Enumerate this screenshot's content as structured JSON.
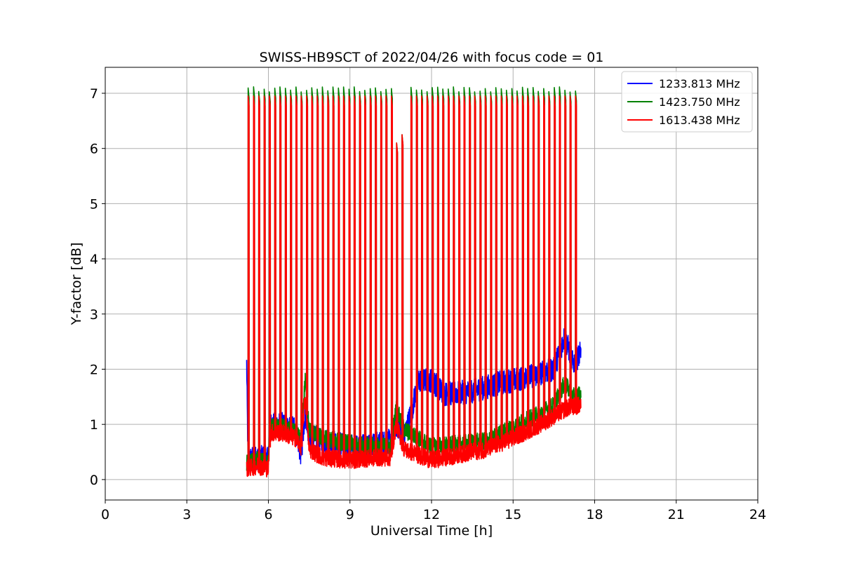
{
  "chart_data": {
    "type": "line",
    "title": "SWISS-HB9SCT of 2022/04/26 with focus code = 01",
    "xlabel": "Universal Time [h]",
    "ylabel": "Y-factor [dB]",
    "xlim": [
      0,
      24
    ],
    "ylim": [
      -0.37,
      7.47
    ],
    "xticks": [
      0,
      3,
      6,
      9,
      12,
      15,
      18,
      21,
      24
    ],
    "yticks": [
      0,
      1,
      2,
      3,
      4,
      5,
      6,
      7
    ],
    "grid": true,
    "legend_position": "top-right",
    "data_range_x": [
      5.2,
      17.5
    ],
    "series": [
      {
        "name": "1233.813 MHz",
        "color": "#0000ff",
        "baseline": [
          [
            5.2,
            2.1
          ],
          [
            5.25,
            0.35
          ],
          [
            5.6,
            0.4
          ],
          [
            6.0,
            0.4
          ],
          [
            6.05,
            1.0
          ],
          [
            6.5,
            1.0
          ],
          [
            7.0,
            0.9
          ],
          [
            7.2,
            0.45
          ],
          [
            7.35,
            1.2
          ],
          [
            7.5,
            0.8
          ],
          [
            8.0,
            0.7
          ],
          [
            9.0,
            0.6
          ],
          [
            10.0,
            0.65
          ],
          [
            10.5,
            0.7
          ],
          [
            10.7,
            1.0
          ],
          [
            11.0,
            0.8
          ],
          [
            11.3,
            1.3
          ],
          [
            11.5,
            1.8
          ],
          [
            12.0,
            1.8
          ],
          [
            12.5,
            1.55
          ],
          [
            13.5,
            1.6
          ],
          [
            14.5,
            1.75
          ],
          [
            15.5,
            1.85
          ],
          [
            16.5,
            2.0
          ],
          [
            16.9,
            2.6
          ],
          [
            17.2,
            2.1
          ],
          [
            17.5,
            2.3
          ]
        ],
        "spikes": [
          5.25,
          5.45,
          5.64,
          5.84,
          6.03,
          6.23,
          6.42,
          6.62,
          6.81,
          7.01,
          7.2,
          7.4,
          7.59,
          7.79,
          7.98,
          8.18,
          8.37,
          8.57,
          8.76,
          8.96,
          9.15,
          9.35,
          9.54,
          9.74,
          9.93,
          10.13,
          10.32,
          10.52,
          10.71,
          10.91,
          11.24,
          11.44,
          11.63,
          11.83,
          12.02,
          12.22,
          12.41,
          12.61,
          12.8,
          13.0,
          13.19,
          13.39,
          13.58,
          13.78,
          13.97,
          14.17,
          14.36,
          14.56,
          14.75,
          14.95,
          15.14,
          15.34,
          15.53,
          15.73,
          15.92,
          16.12,
          16.31,
          16.51,
          16.7,
          16.9,
          17.09,
          17.29
        ]
      },
      {
        "name": "1423.750 MHz",
        "color": "#008000",
        "baseline": [
          [
            5.2,
            0.3
          ],
          [
            5.6,
            0.35
          ],
          [
            6.0,
            0.3
          ],
          [
            6.05,
            0.95
          ],
          [
            6.5,
            0.95
          ],
          [
            7.0,
            0.85
          ],
          [
            7.2,
            0.7
          ],
          [
            7.35,
            1.8
          ],
          [
            7.5,
            0.9
          ],
          [
            8.0,
            0.75
          ],
          [
            9.0,
            0.65
          ],
          [
            10.0,
            0.6
          ],
          [
            10.5,
            0.6
          ],
          [
            10.7,
            1.3
          ],
          [
            11.0,
            0.9
          ],
          [
            11.5,
            0.75
          ],
          [
            12.0,
            0.6
          ],
          [
            13.0,
            0.65
          ],
          [
            14.0,
            0.7
          ],
          [
            15.0,
            0.95
          ],
          [
            16.0,
            1.2
          ],
          [
            16.5,
            1.35
          ],
          [
            16.9,
            1.75
          ],
          [
            17.2,
            1.5
          ],
          [
            17.5,
            1.55
          ]
        ],
        "spikes": [
          5.25,
          5.45,
          5.64,
          5.84,
          6.03,
          6.23,
          6.42,
          6.62,
          6.81,
          7.01,
          7.2,
          7.4,
          7.59,
          7.79,
          7.98,
          8.18,
          8.37,
          8.57,
          8.76,
          8.96,
          9.15,
          9.35,
          9.54,
          9.74,
          9.93,
          10.13,
          10.32,
          10.52,
          10.71,
          10.91,
          11.24,
          11.44,
          11.63,
          11.83,
          12.02,
          12.22,
          12.41,
          12.61,
          12.8,
          13.0,
          13.19,
          13.39,
          13.58,
          13.78,
          13.97,
          14.17,
          14.36,
          14.56,
          14.75,
          14.95,
          15.14,
          15.34,
          15.53,
          15.73,
          15.92,
          16.12,
          16.31,
          16.51,
          16.7,
          16.9,
          17.09,
          17.29
        ]
      },
      {
        "name": "1613.438 MHz",
        "color": "#ff0000",
        "baseline": [
          [
            5.2,
            0.2
          ],
          [
            5.6,
            0.25
          ],
          [
            6.0,
            0.2
          ],
          [
            6.05,
            0.85
          ],
          [
            6.5,
            0.85
          ],
          [
            7.0,
            0.75
          ],
          [
            7.2,
            0.6
          ],
          [
            7.35,
            1.5
          ],
          [
            7.5,
            0.55
          ],
          [
            8.0,
            0.4
          ],
          [
            9.0,
            0.35
          ],
          [
            10.0,
            0.4
          ],
          [
            10.5,
            0.4
          ],
          [
            10.7,
            1.0
          ],
          [
            11.0,
            0.55
          ],
          [
            11.5,
            0.45
          ],
          [
            12.0,
            0.35
          ],
          [
            13.0,
            0.45
          ],
          [
            14.0,
            0.55
          ],
          [
            15.0,
            0.75
          ],
          [
            16.0,
            1.0
          ],
          [
            16.5,
            1.15
          ],
          [
            17.0,
            1.3
          ],
          [
            17.5,
            1.35
          ]
        ],
        "spikes": [
          5.25,
          5.45,
          5.64,
          5.84,
          6.03,
          6.23,
          6.42,
          6.62,
          6.81,
          7.01,
          7.2,
          7.4,
          7.59,
          7.79,
          7.98,
          8.18,
          8.37,
          8.57,
          8.76,
          8.96,
          9.15,
          9.35,
          9.54,
          9.74,
          9.93,
          10.13,
          10.32,
          10.52,
          10.71,
          10.91,
          11.24,
          11.44,
          11.63,
          11.83,
          12.02,
          12.22,
          12.41,
          12.61,
          12.8,
          13.0,
          13.19,
          13.39,
          13.58,
          13.78,
          13.97,
          14.17,
          14.36,
          14.56,
          14.75,
          14.95,
          15.14,
          15.34,
          15.53,
          15.73,
          15.92,
          16.12,
          16.31,
          16.51,
          16.7,
          16.9,
          17.09,
          17.29
        ]
      }
    ],
    "spike_peaks": {
      "default": 6.95,
      "low_pair": [
        [
          10.71,
          6.1
        ],
        [
          10.91,
          6.25
        ]
      ],
      "green_extra": 0.12
    }
  }
}
